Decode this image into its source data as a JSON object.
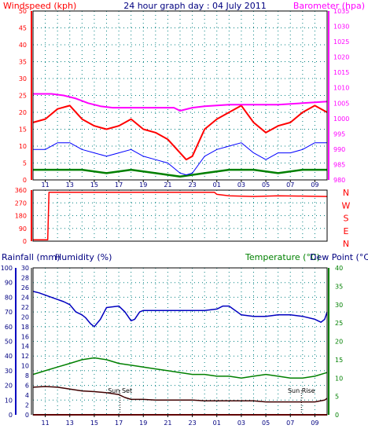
{
  "chart_data": [
    {
      "id": "wind",
      "type": "line",
      "title": "24 hour graph day : 04 July 2011",
      "ylabel_left": "Windspeed (kph)",
      "ylabel_right": "Barometer (hpa)",
      "ylim_left": [
        0,
        50
      ],
      "ylim_right": [
        980,
        1035
      ],
      "yticks_left": [
        0,
        5,
        10,
        15,
        20,
        25,
        30,
        35,
        40,
        45,
        50
      ],
      "yticks_right": [
        980,
        985,
        990,
        995,
        1000,
        1005,
        1010,
        1015,
        1020,
        1025,
        1030,
        1035
      ],
      "x_tick_labels": [
        "11",
        "13",
        "15",
        "17",
        "19",
        "21",
        "23",
        "01",
        "03",
        "05",
        "07",
        "09"
      ],
      "x_start_hour": 10,
      "x_span_hours": 24,
      "grid": true,
      "colors": {
        "gust": "#ff0000",
        "average": "#0000ff",
        "low": "#008000",
        "barometer": "#ff00ff",
        "axis_left": "#ff0000",
        "axis_right": "#ff00ff",
        "grid": "#008080"
      },
      "series": [
        {
          "key": "barometer",
          "axis": "right",
          "x": [
            0,
            1.5,
            2.5,
            3.5,
            4.5,
            5.5,
            6.5,
            8,
            10,
            11.5,
            12,
            13,
            14,
            16,
            18,
            20,
            22,
            24
          ],
          "y": [
            1008,
            1008,
            1007.5,
            1006.5,
            1005,
            1004,
            1003.5,
            1003.5,
            1003.5,
            1003.5,
            1002.5,
            1003.5,
            1004,
            1004.5,
            1004.5,
            1004.5,
            1005,
            1005.5
          ]
        },
        {
          "key": "gust",
          "axis": "left",
          "x": [
            0,
            1,
            2,
            3,
            4,
            5,
            6,
            7,
            8,
            9,
            10,
            11,
            12,
            12.5,
            13,
            14,
            15,
            16,
            17,
            18,
            19,
            20,
            21,
            22,
            23,
            24
          ],
          "y": [
            17,
            18,
            21,
            22,
            18,
            16,
            15,
            16,
            18,
            15,
            14,
            12,
            8,
            6,
            7,
            15,
            18,
            20,
            22,
            17,
            14,
            16,
            17,
            20,
            22,
            20
          ]
        },
        {
          "key": "average",
          "axis": "left",
          "x": [
            0,
            1,
            2,
            3,
            4,
            5,
            6,
            7,
            8,
            9,
            10,
            11,
            12,
            12.5,
            13,
            14,
            15,
            16,
            17,
            18,
            19,
            20,
            21,
            22,
            23,
            24
          ],
          "y": [
            9,
            9,
            11,
            11,
            9,
            8,
            7,
            8,
            9,
            7,
            6,
            5,
            2,
            1.5,
            2,
            7,
            9,
            10,
            11,
            8,
            6,
            8,
            8,
            9,
            11,
            11
          ]
        },
        {
          "key": "low",
          "axis": "left",
          "x": [
            0,
            2,
            4,
            6,
            8,
            10,
            12,
            14,
            16,
            18,
            20,
            22,
            24
          ],
          "y": [
            3,
            3,
            3,
            2,
            3,
            2,
            1,
            2,
            3,
            3,
            2,
            3,
            3
          ]
        }
      ]
    },
    {
      "id": "direction",
      "type": "line",
      "ylim": [
        0,
        360
      ],
      "yticks": [
        0,
        90,
        180,
        270,
        360
      ],
      "direction_labels": [
        "N",
        "W",
        "S",
        "E",
        "N"
      ],
      "colors": {
        "direction": "#ff0000",
        "axis": "#ff0000",
        "labels": "#ff0000"
      },
      "series": [
        {
          "key": "direction",
          "x": [
            0,
            1.2,
            1.3,
            14.8,
            15,
            16,
            18,
            20,
            22,
            24
          ],
          "y": [
            10,
            10,
            345,
            345,
            330,
            320,
            315,
            320,
            318,
            315
          ]
        }
      ]
    },
    {
      "id": "temp",
      "type": "line",
      "ylabel_rain": "Rainfall (mm)",
      "ylabel_humidity": "Humidity (%)",
      "ylabel_temp": "Temperature (°C)",
      "ylabel_dew": "Dew Point (°C)",
      "ylim_rain": [
        0,
        100
      ],
      "ylim_humidity": [
        0,
        30
      ],
      "ylim_temp": [
        0,
        40
      ],
      "yticks_rain": [
        0,
        10,
        20,
        30,
        40,
        50,
        60,
        70,
        80,
        90,
        100
      ],
      "yticks_humidity": [
        0,
        2,
        4,
        6,
        8,
        10,
        12,
        14,
        16,
        18,
        20,
        22,
        24,
        26,
        28,
        30
      ],
      "yticks_temp": [
        0,
        5,
        10,
        15,
        20,
        25,
        30,
        35,
        40
      ],
      "annotations": [
        {
          "text": "Sun Set",
          "x": 7.1
        },
        {
          "text": "Sun Rise",
          "x": 21.9
        }
      ],
      "colors": {
        "humidity": "#0000c0",
        "temperature": "#008000",
        "dewpoint": "#400000",
        "rain": "#c00000",
        "axis_rain": "#0000c0",
        "axis_temp": "#008000"
      },
      "series": [
        {
          "key": "humidity",
          "axis": "rain",
          "x": [
            0,
            0.5,
            1.5,
            2.5,
            3,
            3.3,
            3.5,
            4,
            4.3,
            4.7,
            5,
            5.5,
            6,
            7,
            7.5,
            8,
            8.3,
            8.7,
            9,
            10,
            11,
            12,
            13,
            14,
            15,
            15.5,
            16,
            17,
            18,
            19,
            20,
            21,
            22,
            23,
            23.5,
            23.8,
            24
          ],
          "y": [
            84,
            83,
            80,
            77,
            75,
            72,
            70,
            68,
            66,
            62,
            60,
            65,
            73,
            74,
            70,
            64,
            65,
            70,
            71,
            71,
            71,
            71,
            71,
            71,
            72,
            74,
            74,
            68,
            67,
            67,
            68,
            68,
            67,
            65,
            63,
            65,
            70
          ]
        },
        {
          "key": "temperature",
          "axis": "temp",
          "x": [
            0,
            1,
            2,
            3,
            4,
            5,
            6,
            7,
            8,
            9,
            10,
            11,
            12,
            13,
            14,
            15,
            16,
            17,
            18,
            19,
            20,
            21,
            22,
            23,
            24
          ],
          "y": [
            11,
            12,
            13,
            14,
            15,
            15.5,
            15,
            14,
            13.5,
            13,
            12.5,
            12,
            11.5,
            11,
            11,
            10.5,
            10.5,
            10,
            10.5,
            11,
            10.5,
            10,
            10,
            10.5,
            11.5
          ]
        },
        {
          "key": "dewpoint",
          "axis": "temp",
          "x": [
            0,
            1,
            2,
            3,
            4,
            5,
            6,
            7,
            7.5,
            8,
            9,
            10,
            11,
            12,
            13,
            14,
            15,
            16,
            17,
            18,
            19,
            20,
            21,
            22,
            23,
            23.8,
            24
          ],
          "y": [
            7.5,
            7.7,
            7.5,
            7,
            6.5,
            6.3,
            6,
            5.5,
            4.7,
            4.2,
            4.2,
            4,
            4,
            4,
            4,
            3.8,
            3.8,
            3.8,
            3.8,
            3.8,
            3.5,
            3.5,
            3.5,
            3.5,
            3.5,
            4,
            4.5
          ]
        },
        {
          "key": "rain",
          "axis": "rain",
          "x": [
            0,
            24
          ],
          "y": [
            0,
            0
          ]
        }
      ]
    }
  ]
}
